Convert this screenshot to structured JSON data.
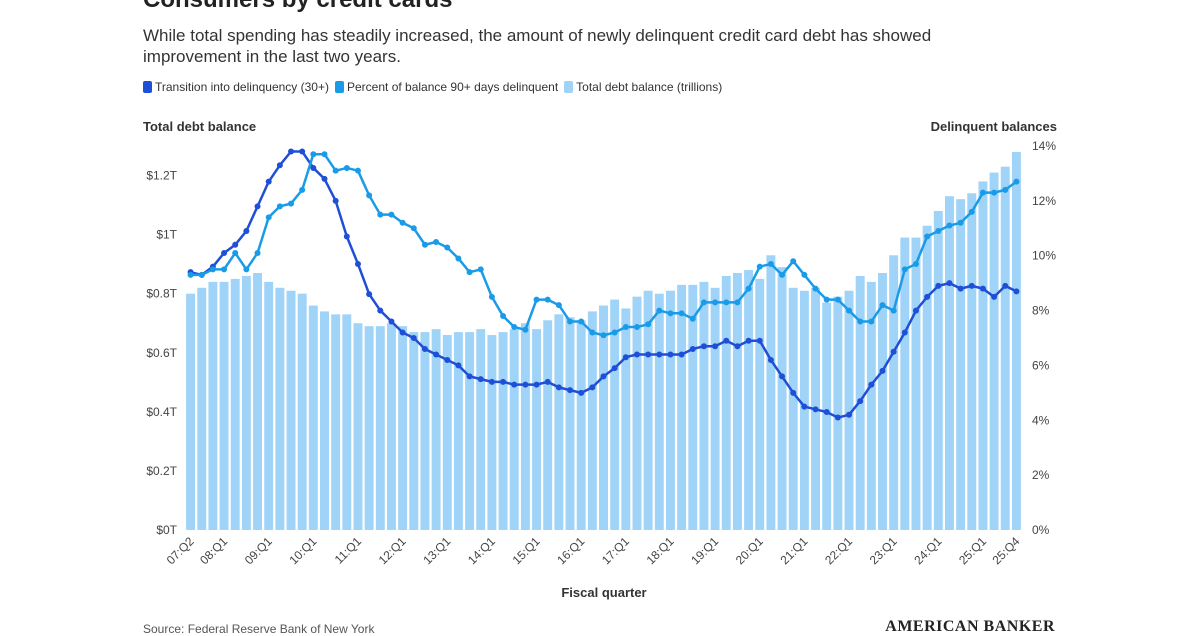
{
  "chart_data": {
    "type": "combo",
    "title": "Consumers by credit cards",
    "subtitle": "While total spending has steadily increased, the amount of newly delinquent credit card debt has showed improvement in the last two years.",
    "ylabel": "Total debt balance",
    "y2label": "Delinquent balances",
    "xlabel": "Fiscal quarter",
    "source": "Source: Federal Reserve Bank of New York",
    "brand": "AMERICAN BANKER",
    "categories": [
      "07:Q2",
      null,
      null,
      "08:Q1",
      null,
      null,
      null,
      "09:Q1",
      null,
      null,
      null,
      "10:Q1",
      null,
      null,
      null,
      "11:Q1",
      null,
      null,
      null,
      "12:Q1",
      null,
      null,
      null,
      "13:Q1",
      null,
      null,
      null,
      "14:Q1",
      null,
      null,
      null,
      "15:Q1",
      null,
      null,
      null,
      "16:Q1",
      null,
      null,
      null,
      "17:Q1",
      null,
      null,
      null,
      "18:Q1",
      null,
      null,
      null,
      "19:Q1",
      null,
      null,
      null,
      "20:Q1",
      null,
      null,
      null,
      "21:Q1",
      null,
      null,
      null,
      "22:Q1",
      null,
      null,
      null,
      "23:Q1",
      null,
      null,
      null,
      "24:Q1",
      null,
      null,
      null,
      "25:Q1",
      null,
      null,
      "25:Q4"
    ],
    "series": [
      {
        "name": "Transition into delinquency (30+)",
        "type": "line",
        "axis": "y2",
        "color": "#1f4fd6",
        "values": [
          9.4,
          9.3,
          9.6,
          10.1,
          10.4,
          10.9,
          11.8,
          12.7,
          13.3,
          13.8,
          13.8,
          13.2,
          12.8,
          12.0,
          10.7,
          9.7,
          8.6,
          8.0,
          7.6,
          7.2,
          7.0,
          6.6,
          6.4,
          6.2,
          6.0,
          5.6,
          5.5,
          5.4,
          5.4,
          5.3,
          5.3,
          5.3,
          5.4,
          5.2,
          5.1,
          5.0,
          5.2,
          5.6,
          5.9,
          6.3,
          6.4,
          6.4,
          6.4,
          6.4,
          6.4,
          6.6,
          6.7,
          6.7,
          6.9,
          6.7,
          6.9,
          6.9,
          6.2,
          5.6,
          5.0,
          4.5,
          4.4,
          4.3,
          4.1,
          4.2,
          4.7,
          5.3,
          5.8,
          6.5,
          7.2,
          8.0,
          8.5,
          8.9,
          9.0,
          8.8,
          8.9,
          8.8,
          8.5,
          8.9,
          8.7
        ]
      },
      {
        "name": "Percent of balance 90+ days delinquent",
        "type": "line",
        "axis": "y2",
        "color": "#1a9be8",
        "values": [
          9.3,
          9.3,
          9.5,
          9.5,
          10.1,
          9.5,
          10.1,
          11.4,
          11.8,
          11.9,
          12.4,
          13.7,
          13.7,
          13.1,
          13.2,
          13.1,
          12.2,
          11.5,
          11.5,
          11.2,
          11.0,
          10.4,
          10.5,
          10.3,
          9.9,
          9.4,
          9.5,
          8.5,
          7.8,
          7.4,
          7.3,
          8.4,
          8.4,
          8.2,
          7.6,
          7.6,
          7.2,
          7.1,
          7.2,
          7.4,
          7.4,
          7.5,
          8.0,
          7.9,
          7.9,
          7.7,
          8.3,
          8.3,
          8.3,
          8.3,
          8.8,
          9.6,
          9.7,
          9.3,
          9.8,
          9.3,
          8.8,
          8.4,
          8.4,
          8.0,
          7.6,
          7.6,
          8.2,
          8.0,
          9.5,
          9.7,
          10.7,
          10.9,
          11.1,
          11.2,
          11.6,
          12.3,
          12.3,
          12.4,
          12.7
        ]
      },
      {
        "name": "Total debt balance (trillions)",
        "type": "bar",
        "axis": "y",
        "color": "#9fd3f7",
        "values": [
          0.8,
          0.82,
          0.84,
          0.84,
          0.85,
          0.86,
          0.87,
          0.84,
          0.82,
          0.81,
          0.8,
          0.76,
          0.74,
          0.73,
          0.73,
          0.7,
          0.69,
          0.69,
          0.7,
          0.69,
          0.67,
          0.67,
          0.68,
          0.66,
          0.67,
          0.67,
          0.68,
          0.66,
          0.67,
          0.68,
          0.7,
          0.68,
          0.71,
          0.73,
          0.72,
          0.71,
          0.74,
          0.76,
          0.78,
          0.75,
          0.79,
          0.81,
          0.8,
          0.81,
          0.83,
          0.83,
          0.84,
          0.82,
          0.86,
          0.87,
          0.88,
          0.85,
          0.93,
          0.89,
          0.82,
          0.81,
          0.82,
          0.77,
          0.79,
          0.81,
          0.86,
          0.84,
          0.87,
          0.93,
          0.99,
          0.99,
          1.03,
          1.08,
          1.13,
          1.12,
          1.14,
          1.18,
          1.21,
          1.23,
          1.28
        ]
      }
    ],
    "ylim": [
      0,
      1.3
    ],
    "yticks": [
      {
        "value": 0,
        "label": "$0T"
      },
      {
        "value": 0.2,
        "label": "$0.2T"
      },
      {
        "value": 0.4,
        "label": "$0.4T"
      },
      {
        "value": 0.6,
        "label": "$0.6T"
      },
      {
        "value": 0.8,
        "label": "$0.8T"
      },
      {
        "value": 1,
        "label": "$1T"
      },
      {
        "value": 1.2,
        "label": "$1.2T"
      }
    ],
    "y2lim": [
      0,
      14
    ],
    "y2ticks": [
      {
        "value": 0,
        "label": "0%"
      },
      {
        "value": 2,
        "label": "2%"
      },
      {
        "value": 4,
        "label": "4%"
      },
      {
        "value": 6,
        "label": "6%"
      },
      {
        "value": 8,
        "label": "8%"
      },
      {
        "value": 10,
        "label": "10%"
      },
      {
        "value": 12,
        "label": "12%"
      },
      {
        "value": 14,
        "label": "14%"
      }
    ],
    "grid": false
  }
}
